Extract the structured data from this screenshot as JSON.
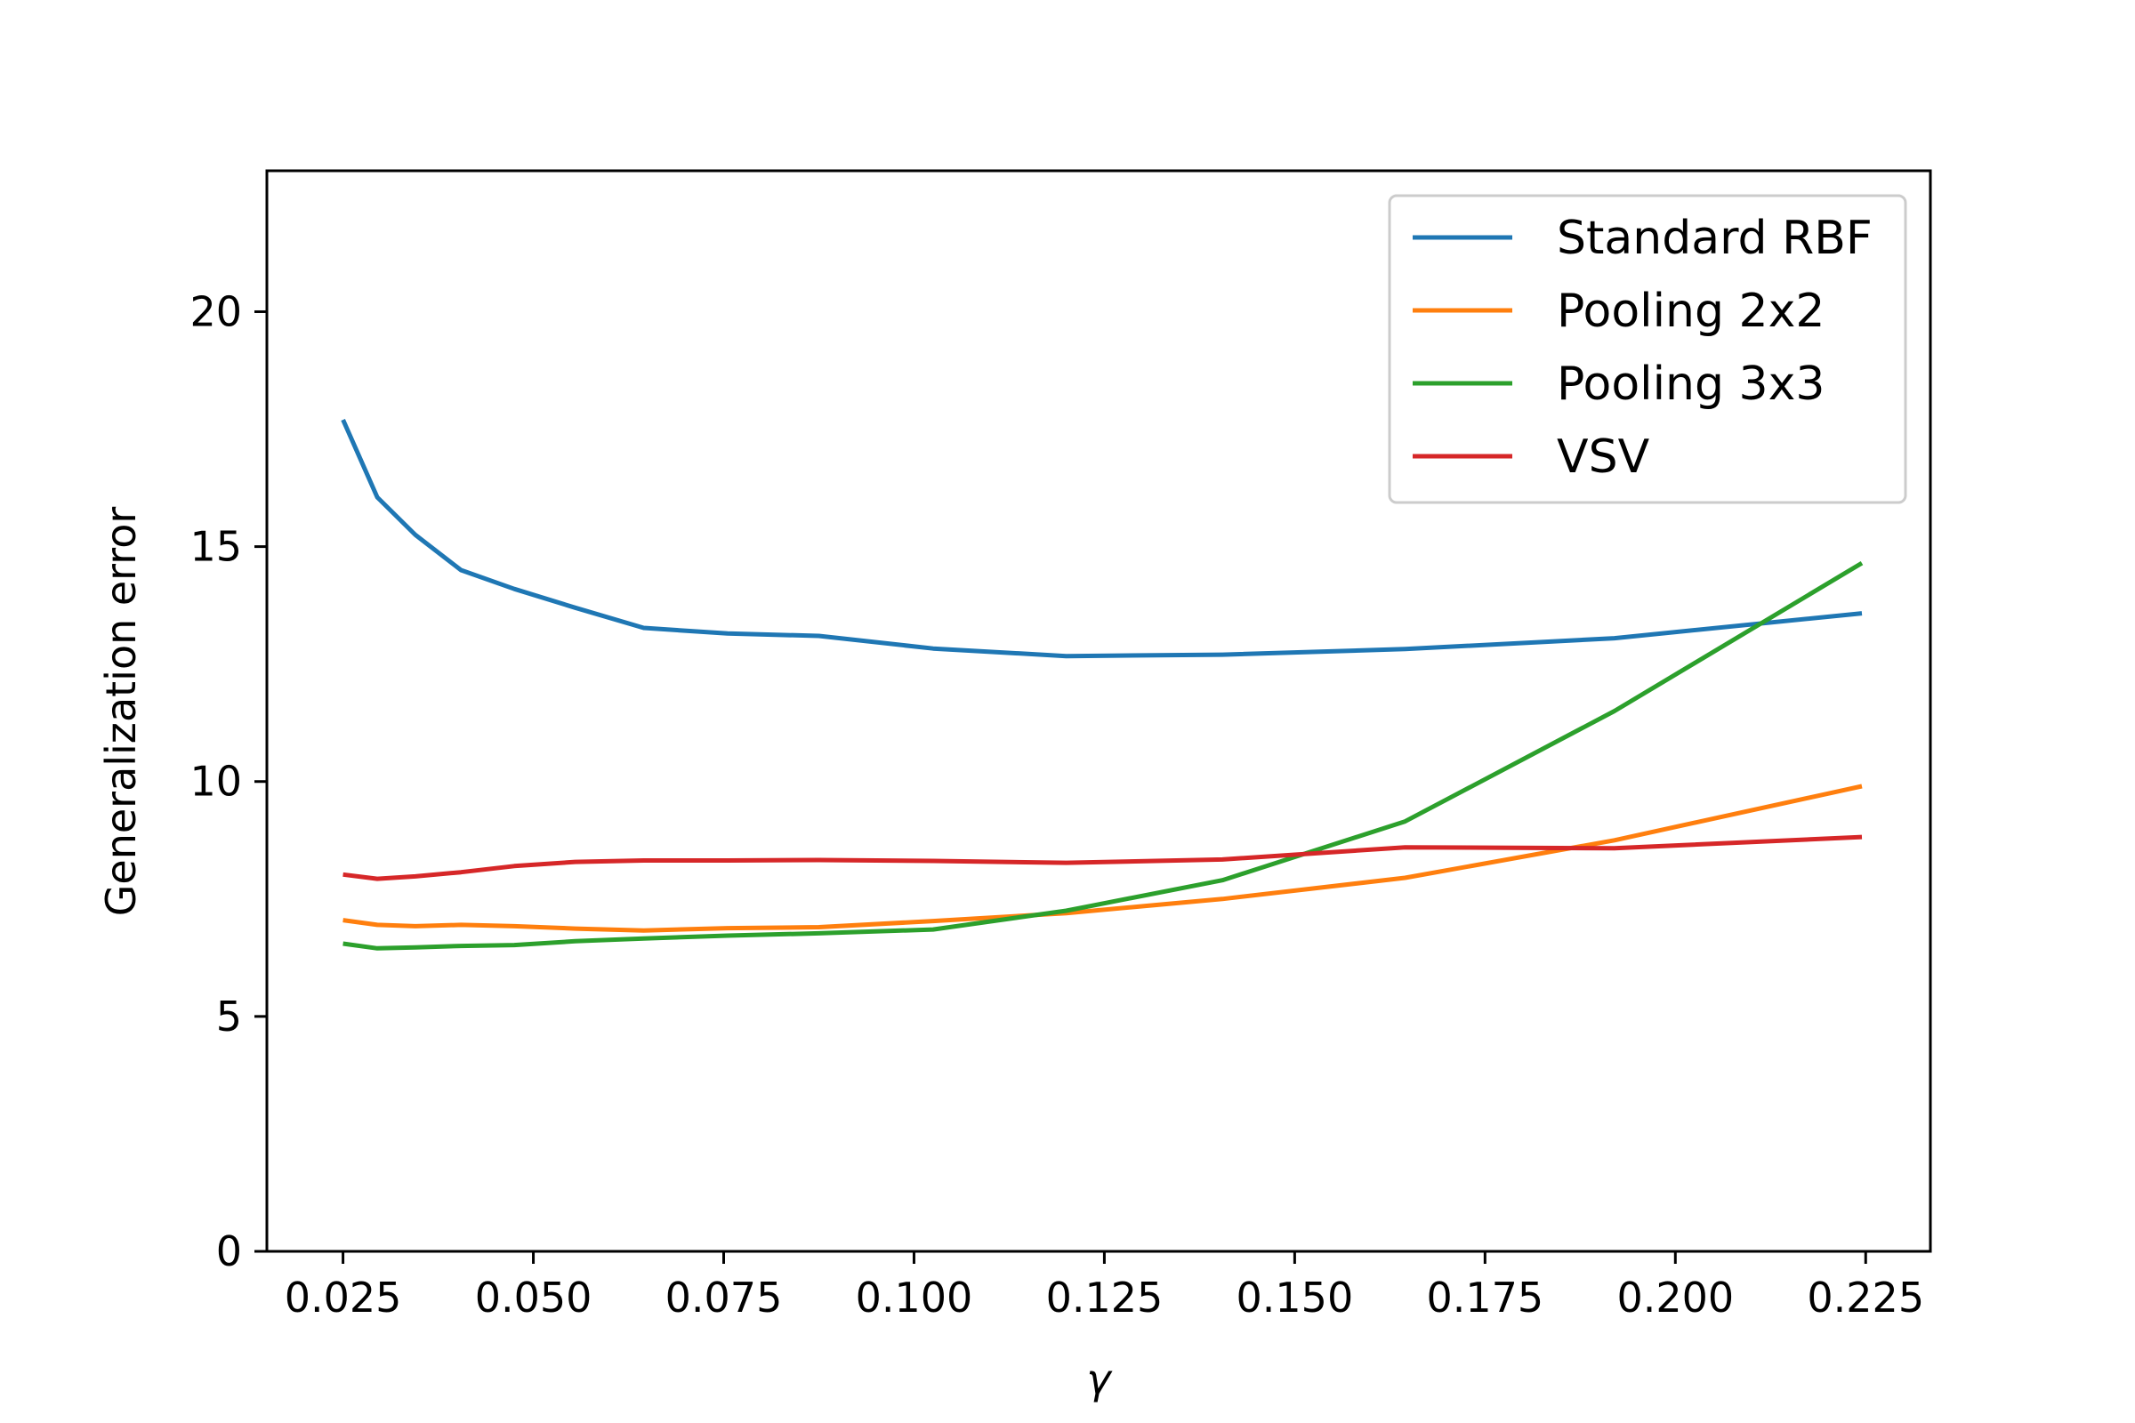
{
  "chart_data": {
    "type": "line",
    "title": "",
    "xlabel": "γ",
    "ylabel": "Generalization error",
    "xlim": [
      0.015,
      0.2335
    ],
    "ylim": [
      0,
      23
    ],
    "x_ticks": [
      0.025,
      0.05,
      0.075,
      0.1,
      0.125,
      0.15,
      0.175,
      0.2,
      0.225
    ],
    "x_tick_labels": [
      "0.025",
      "0.050",
      "0.075",
      "0.100",
      "0.125",
      "0.150",
      "0.175",
      "0.200",
      "0.225"
    ],
    "y_ticks": [
      0,
      5,
      10,
      15,
      20
    ],
    "y_tick_labels": [
      "0",
      "5",
      "10",
      "15",
      "20"
    ],
    "grid": false,
    "legend_position": "top-right",
    "x": [
      0.025,
      0.0295,
      0.0345,
      0.0405,
      0.0475,
      0.0555,
      0.0645,
      0.0755,
      0.0875,
      0.1025,
      0.12,
      0.1405,
      0.1645,
      0.192,
      0.2245
    ],
    "series": [
      {
        "name": "Standard RBF",
        "color": "#1f77b4",
        "values": [
          17.7,
          16.05,
          15.25,
          14.5,
          14.1,
          13.7,
          13.27,
          13.15,
          13.1,
          12.83,
          12.67,
          12.7,
          12.82,
          13.05,
          13.58
        ]
      },
      {
        "name": "Pooling 2x2",
        "color": "#ff7f0e",
        "values": [
          7.05,
          6.95,
          6.92,
          6.95,
          6.92,
          6.87,
          6.83,
          6.88,
          6.9,
          7.03,
          7.2,
          7.5,
          7.95,
          8.75,
          9.9
        ]
      },
      {
        "name": "Pooling 3x3",
        "color": "#2ca02c",
        "values": [
          6.55,
          6.45,
          6.47,
          6.5,
          6.52,
          6.6,
          6.66,
          6.72,
          6.77,
          6.85,
          7.25,
          7.9,
          9.15,
          11.5,
          14.65
        ]
      },
      {
        "name": "VSV",
        "color": "#d62728",
        "values": [
          8.02,
          7.93,
          7.98,
          8.07,
          8.2,
          8.29,
          8.32,
          8.32,
          8.33,
          8.31,
          8.27,
          8.34,
          8.6,
          8.58,
          8.82
        ]
      }
    ]
  }
}
